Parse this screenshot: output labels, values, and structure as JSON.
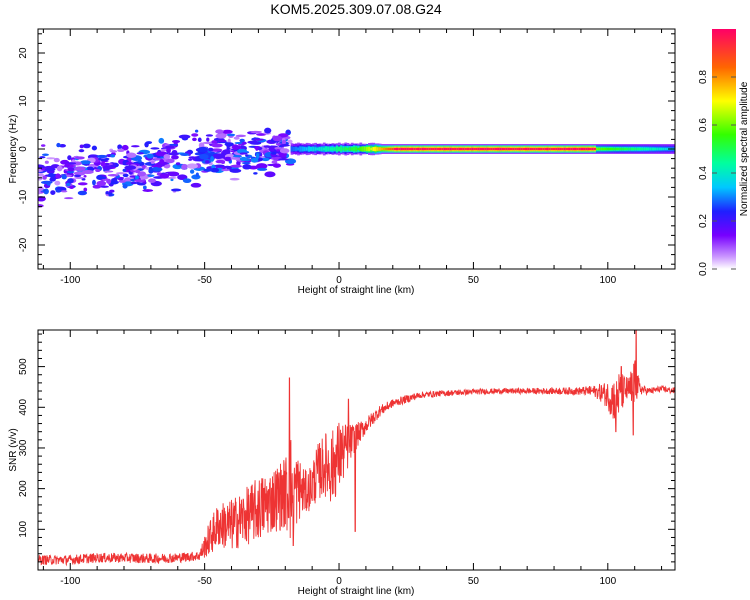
{
  "title": "KOM5.2025.309.07.08.G24",
  "chart_data": [
    {
      "type": "heatmap",
      "name": "spectrogram",
      "xlabel": "Height of straight line (km)",
      "ylabel": "Frequency (Hz)",
      "xlim": [
        -112,
        125
      ],
      "ylim": [
        -25,
        25
      ],
      "x_ticks": [
        -100,
        -50,
        0,
        50,
        100
      ],
      "y_ticks": [
        -20,
        -10,
        0,
        10,
        20
      ],
      "colorbar": {
        "label": "Normalized spectral amplitude",
        "range": [
          0.0,
          1.0
        ],
        "ticks": [
          0.0,
          0.2,
          0.4,
          0.6,
          0.8
        ],
        "tick_labels": [
          "0.0",
          "0.2",
          "0.4",
          "0.6",
          "0.8"
        ]
      },
      "features": [
        {
          "x_range": [
            -112,
            -18
          ],
          "freq_range": [
            -15,
            8
          ],
          "amplitude": [
            0.05,
            0.3
          ],
          "description": "scattered patches drifting upward with height"
        },
        {
          "x_range": [
            -18,
            125
          ],
          "freq": 0,
          "amplitude": [
            0.3,
            1.0
          ],
          "description": "narrow band at 0 Hz, peak near 1.0 between 20 and 95 km"
        }
      ]
    },
    {
      "type": "line",
      "name": "snr",
      "xlabel": "Height of straight line (km)",
      "ylabel": "SNR (v/v)",
      "xlim": [
        -112,
        125
      ],
      "ylim": [
        0,
        590
      ],
      "x_ticks": [
        -100,
        -50,
        0,
        50,
        100
      ],
      "y_ticks": [
        100,
        200,
        300,
        400,
        500
      ],
      "color": "#ee3333",
      "series": [
        {
          "name": "SNR envelope",
          "x": [
            -112,
            -100,
            -90,
            -80,
            -70,
            -60,
            -52,
            -48,
            -45,
            -40,
            -35,
            -30,
            -25,
            -20,
            -18,
            -15,
            -12,
            -10,
            -8,
            -5,
            -3,
            0,
            3,
            5,
            8,
            10,
            15,
            20,
            25,
            30,
            40,
            50,
            60,
            70,
            80,
            90,
            95,
            98,
            100,
            102,
            104,
            106,
            108,
            109,
            110,
            112,
            115,
            120,
            125
          ],
          "y": [
            25,
            25,
            30,
            30,
            28,
            30,
            35,
            80,
            110,
            110,
            130,
            150,
            170,
            190,
            200,
            200,
            190,
            210,
            240,
            260,
            250,
            280,
            300,
            320,
            340,
            355,
            390,
            410,
            420,
            430,
            435,
            438,
            440,
            440,
            440,
            440,
            440,
            435,
            430,
            420,
            430,
            440,
            445,
            440,
            460,
            445,
            440,
            445,
            440
          ],
          "noise_amplitude": [
            12,
            12,
            12,
            12,
            12,
            12,
            12,
            45,
            55,
            65,
            70,
            80,
            80,
            90,
            140,
            80,
            50,
            60,
            70,
            80,
            90,
            90,
            60,
            40,
            25,
            20,
            14,
            10,
            10,
            8,
            7,
            7,
            7,
            7,
            8,
            10,
            14,
            25,
            35,
            55,
            60,
            40,
            30,
            70,
            60,
            15,
            8,
            8,
            8
          ],
          "spikes": [
            {
              "x": -18.5,
              "y": 472
            },
            {
              "x": -17.0,
              "y": 60
            },
            {
              "x": 3.5,
              "y": 420
            },
            {
              "x": 6.0,
              "y": 95
            },
            {
              "x": 103.0,
              "y": 340
            },
            {
              "x": 105.0,
              "y": 500
            },
            {
              "x": 109.5,
              "y": 332
            },
            {
              "x": 110.5,
              "y": 590
            }
          ]
        }
      ]
    }
  ]
}
